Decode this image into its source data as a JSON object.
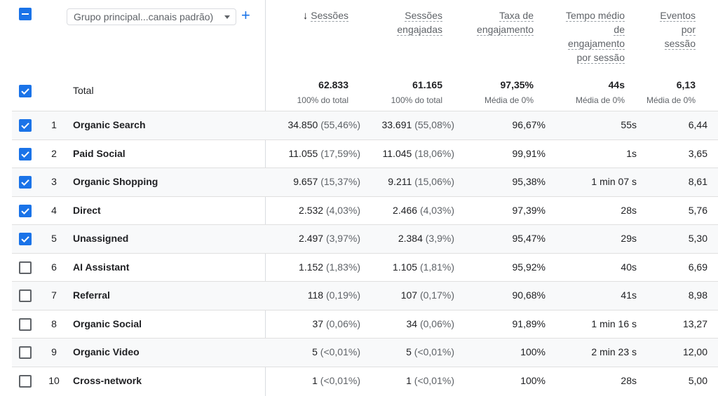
{
  "header": {
    "dimension_select": {
      "label": "Grupo principal...canais padrão)"
    },
    "add_icon": "+",
    "sort_icon": "↓",
    "columns": [
      {
        "lines": [
          "Sessões"
        ]
      },
      {
        "lines": [
          "Sessões",
          "engajadas"
        ]
      },
      {
        "lines": [
          "Taxa de",
          "engajamento"
        ]
      },
      {
        "lines": [
          "Tempo médio",
          "de",
          "engajamento",
          "por sessão"
        ]
      },
      {
        "lines": [
          "Eventos",
          "por",
          "sessão"
        ]
      }
    ]
  },
  "totals": {
    "label": "Total",
    "values": [
      "62.833",
      "61.165",
      "97,35%",
      "44s",
      "6,13"
    ],
    "subs": [
      "100% do total",
      "100% do total",
      "Média de 0%",
      "Média de 0%",
      "Média de 0%"
    ]
  },
  "rows": [
    {
      "checked": true,
      "index": "1",
      "channel": "Organic Search",
      "sessions": "34.850",
      "sessions_pct": "(55,46%)",
      "engaged": "33.691",
      "engaged_pct": "(55,08%)",
      "rate": "96,67%",
      "avg_time": "55s",
      "events": "6,44"
    },
    {
      "checked": true,
      "index": "2",
      "channel": "Paid Social",
      "sessions": "11.055",
      "sessions_pct": "(17,59%)",
      "engaged": "11.045",
      "engaged_pct": "(18,06%)",
      "rate": "99,91%",
      "avg_time": "1s",
      "events": "3,65"
    },
    {
      "checked": true,
      "index": "3",
      "channel": "Organic Shopping",
      "sessions": "9.657",
      "sessions_pct": "(15,37%)",
      "engaged": "9.211",
      "engaged_pct": "(15,06%)",
      "rate": "95,38%",
      "avg_time": "1 min 07 s",
      "events": "8,61"
    },
    {
      "checked": true,
      "index": "4",
      "channel": "Direct",
      "sessions": "2.532",
      "sessions_pct": "(4,03%)",
      "engaged": "2.466",
      "engaged_pct": "(4,03%)",
      "rate": "97,39%",
      "avg_time": "28s",
      "events": "5,76"
    },
    {
      "checked": true,
      "index": "5",
      "channel": "Unassigned",
      "sessions": "2.497",
      "sessions_pct": "(3,97%)",
      "engaged": "2.384",
      "engaged_pct": "(3,9%)",
      "rate": "95,47%",
      "avg_time": "29s",
      "events": "5,30"
    },
    {
      "checked": false,
      "index": "6",
      "channel": "AI Assistant",
      "sessions": "1.152",
      "sessions_pct": "(1,83%)",
      "engaged": "1.105",
      "engaged_pct": "(1,81%)",
      "rate": "95,92%",
      "avg_time": "40s",
      "events": "6,69"
    },
    {
      "checked": false,
      "index": "7",
      "channel": "Referral",
      "sessions": "118",
      "sessions_pct": "(0,19%)",
      "engaged": "107",
      "engaged_pct": "(0,17%)",
      "rate": "90,68%",
      "avg_time": "41s",
      "events": "8,98"
    },
    {
      "checked": false,
      "index": "8",
      "channel": "Organic Social",
      "sessions": "37",
      "sessions_pct": "(0,06%)",
      "engaged": "34",
      "engaged_pct": "(0,06%)",
      "rate": "91,89%",
      "avg_time": "1 min 16 s",
      "events": "13,27"
    },
    {
      "checked": false,
      "index": "9",
      "channel": "Organic Video",
      "sessions": "5",
      "sessions_pct": "(<0,01%)",
      "engaged": "5",
      "engaged_pct": "(<0,01%)",
      "rate": "100%",
      "avg_time": "2 min 23 s",
      "events": "12,00"
    },
    {
      "checked": false,
      "index": "10",
      "channel": "Cross-network",
      "sessions": "1",
      "sessions_pct": "(<0,01%)",
      "engaged": "1",
      "engaged_pct": "(<0,01%)",
      "rate": "100%",
      "avg_time": "28s",
      "events": "5,00"
    }
  ],
  "colors": {
    "accent": "#1a73e8",
    "row_alt": "#f8f9fa",
    "divider": "#dadce0"
  }
}
